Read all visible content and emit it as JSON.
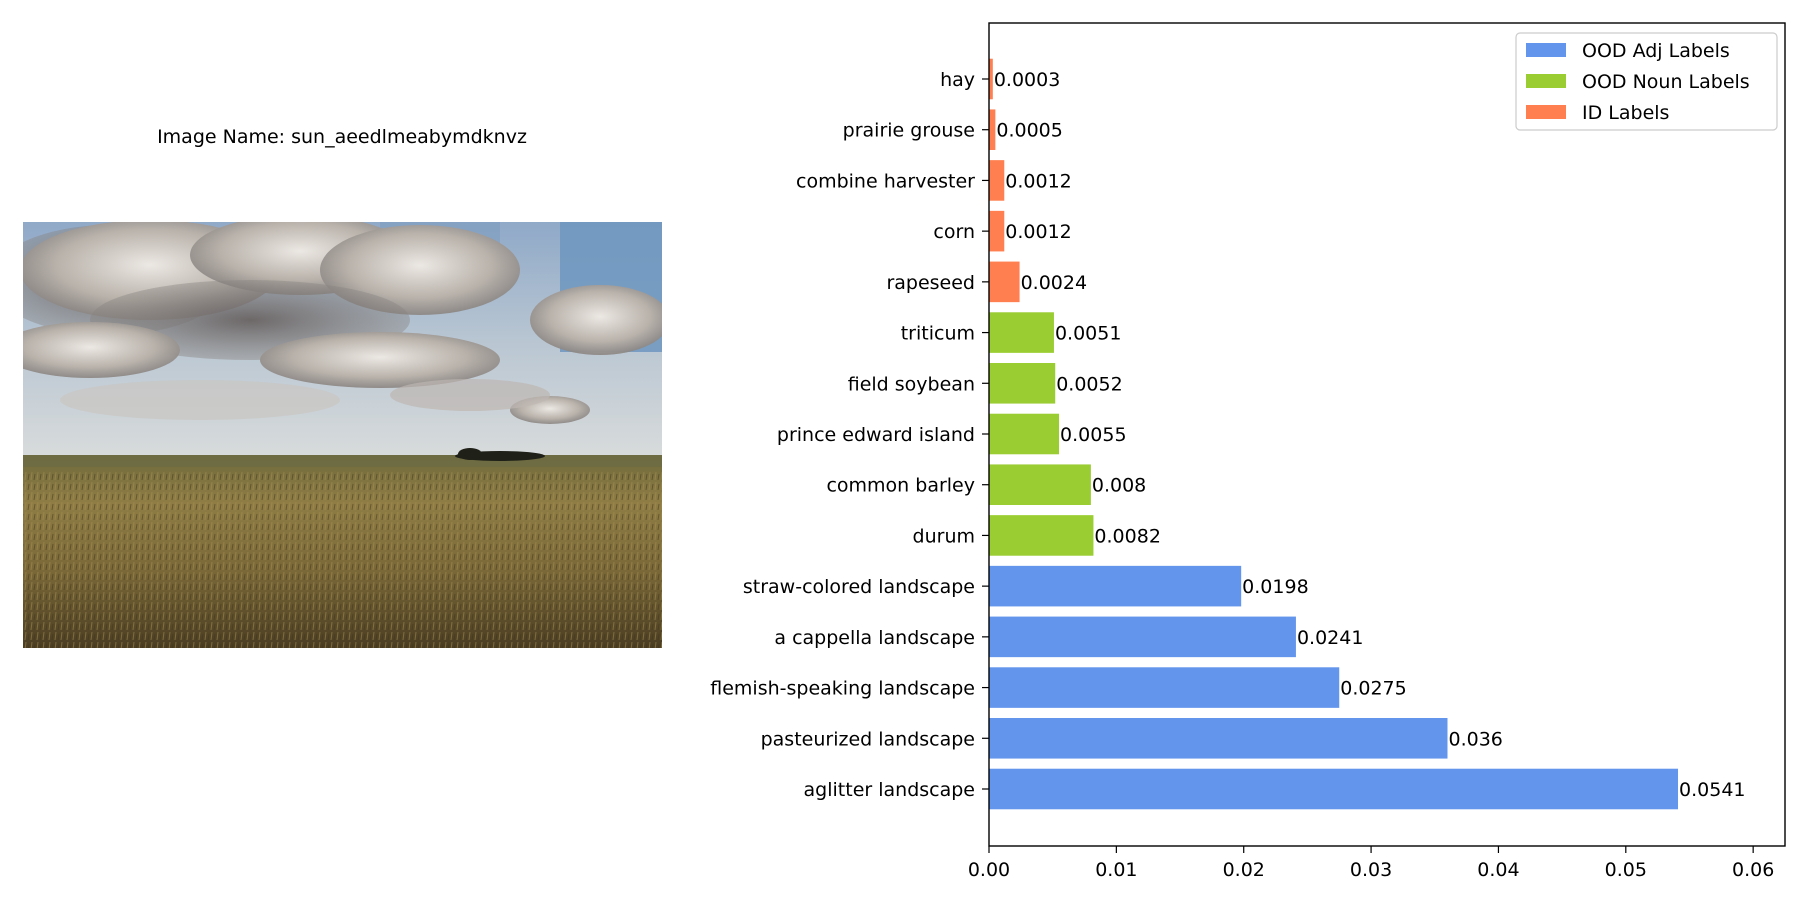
{
  "image_panel": {
    "caption": "Image Name: sun_aeedlmeabymdknvz",
    "photo_description_colors": {
      "sky_blue": "#6f96bf",
      "cloud_gray": "#a49e9a",
      "field_gold": "#8a7a42",
      "field_dark": "#4a3f22"
    }
  },
  "chart_data": {
    "type": "bar",
    "orientation": "horizontal",
    "title": "",
    "xlabel": "",
    "ylabel": "",
    "xlim": [
      0,
      0.0625
    ],
    "x_ticks": [
      0.0,
      0.01,
      0.02,
      0.03,
      0.04,
      0.05,
      0.06
    ],
    "x_tick_labels": [
      "0.00",
      "0.01",
      "0.02",
      "0.03",
      "0.04",
      "0.05",
      "0.06"
    ],
    "legend": {
      "placement": "top-right",
      "entries": [
        {
          "label": "OOD Adj Labels",
          "color": "#6495ED"
        },
        {
          "label": "OOD Noun Labels",
          "color": "#9ACD32"
        },
        {
          "label": "ID Labels",
          "color": "#FF7F50"
        }
      ]
    },
    "bars": [
      {
        "category": "hay",
        "value": 0.0003,
        "label": "0.0003",
        "group": "ID Labels",
        "color": "#FF7F50"
      },
      {
        "category": "prairie grouse",
        "value": 0.0005,
        "label": "0.0005",
        "group": "ID Labels",
        "color": "#FF7F50"
      },
      {
        "category": "combine harvester",
        "value": 0.0012,
        "label": "0.0012",
        "group": "ID Labels",
        "color": "#FF7F50"
      },
      {
        "category": "corn",
        "value": 0.0012,
        "label": "0.0012",
        "group": "ID Labels",
        "color": "#FF7F50"
      },
      {
        "category": "rapeseed",
        "value": 0.0024,
        "label": "0.0024",
        "group": "ID Labels",
        "color": "#FF7F50"
      },
      {
        "category": "triticum",
        "value": 0.0051,
        "label": "0.0051",
        "group": "OOD Noun Labels",
        "color": "#9ACD32"
      },
      {
        "category": "field soybean",
        "value": 0.0052,
        "label": "0.0052",
        "group": "OOD Noun Labels",
        "color": "#9ACD32"
      },
      {
        "category": "prince edward island",
        "value": 0.0055,
        "label": "0.0055",
        "group": "OOD Noun Labels",
        "color": "#9ACD32"
      },
      {
        "category": "common barley",
        "value": 0.008,
        "label": "0.008",
        "group": "OOD Noun Labels",
        "color": "#9ACD32"
      },
      {
        "category": "durum",
        "value": 0.0082,
        "label": "0.0082",
        "group": "OOD Noun Labels",
        "color": "#9ACD32"
      },
      {
        "category": "straw-colored landscape",
        "value": 0.0198,
        "label": "0.0198",
        "group": "OOD Adj Labels",
        "color": "#6495ED"
      },
      {
        "category": "a cappella landscape",
        "value": 0.0241,
        "label": "0.0241",
        "group": "OOD Adj Labels",
        "color": "#6495ED"
      },
      {
        "category": "flemish-speaking landscape",
        "value": 0.0275,
        "label": "0.0275",
        "group": "OOD Adj Labels",
        "color": "#6495ED"
      },
      {
        "category": "pasteurized landscape",
        "value": 0.036,
        "label": "0.036",
        "group": "OOD Adj Labels",
        "color": "#6495ED"
      },
      {
        "category": "aglitter landscape",
        "value": 0.0541,
        "label": "0.0541",
        "group": "OOD Adj Labels",
        "color": "#6495ED"
      }
    ]
  }
}
